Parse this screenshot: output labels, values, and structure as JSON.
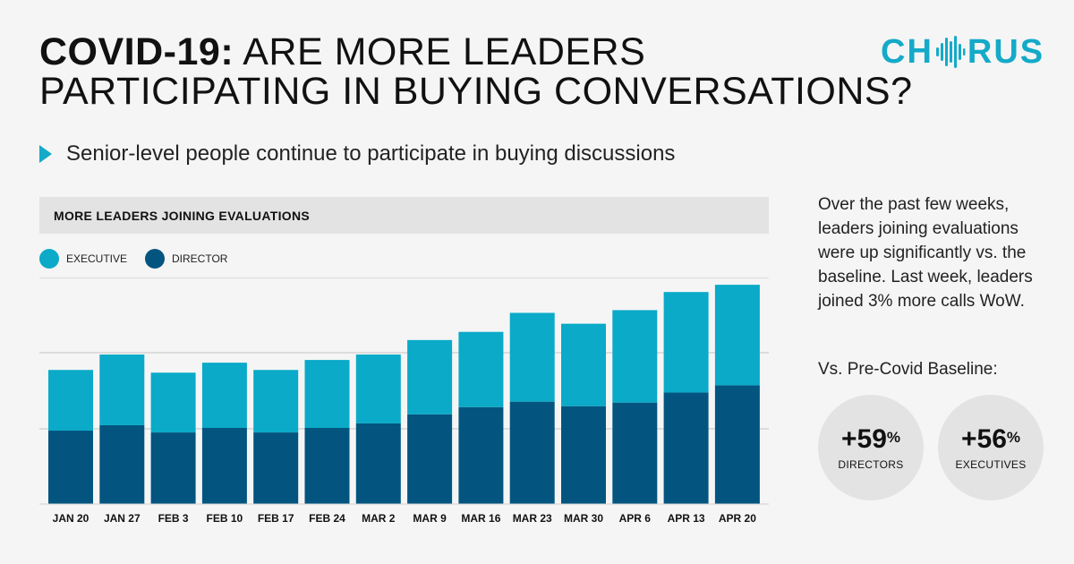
{
  "header": {
    "title_bold": "COVID-19:",
    "title_line1": "ARE MORE LEADERS",
    "title_line2": "PARTICIPATING IN BUYING CONVERSATIONS?",
    "logo_text_left": "CH",
    "logo_text_right": "RUS"
  },
  "subtitle": "Senior-level people continue to participate in buying discussions",
  "side_panel": {
    "description": "Over the past few weeks, leaders joining evaluations were up significantly vs. the baseline. Last week, leaders joined 3% more calls WoW.",
    "baseline_label": "Vs. Pre-Covid Baseline:",
    "stats": [
      {
        "value": "+59",
        "unit": "%",
        "label": "DIRECTORS"
      },
      {
        "value": "+56",
        "unit": "%",
        "label": "EXECUTIVES"
      }
    ]
  },
  "colors": {
    "executive": "#0aaac8",
    "director": "#035580",
    "accent": "#14aac8"
  },
  "chart_data": {
    "type": "bar",
    "stacked": true,
    "title": "MORE LEADERS JOINING EVALUATIONS",
    "categories": [
      "JAN 20",
      "JAN 27",
      "FEB 3",
      "FEB 10",
      "FEB 17",
      "FEB 24",
      "MAR 2",
      "MAR 9",
      "MAR 16",
      "MAR 23",
      "MAR 30",
      "APR 6",
      "APR 13",
      "APR 20"
    ],
    "series": [
      {
        "name": "DIRECTOR",
        "values": [
          81,
          87,
          79,
          84,
          79,
          84,
          89,
          99,
          107,
          113,
          108,
          112,
          123,
          131
        ]
      },
      {
        "name": "EXECUTIVE",
        "values": [
          67,
          78,
          66,
          72,
          69,
          75,
          76,
          82,
          83,
          98,
          91,
          102,
          111,
          111
        ]
      }
    ],
    "legend": [
      "EXECUTIVE",
      "DIRECTOR"
    ],
    "ylim": [
      0,
      250
    ],
    "grid": true,
    "xlabel": "",
    "ylabel": ""
  }
}
